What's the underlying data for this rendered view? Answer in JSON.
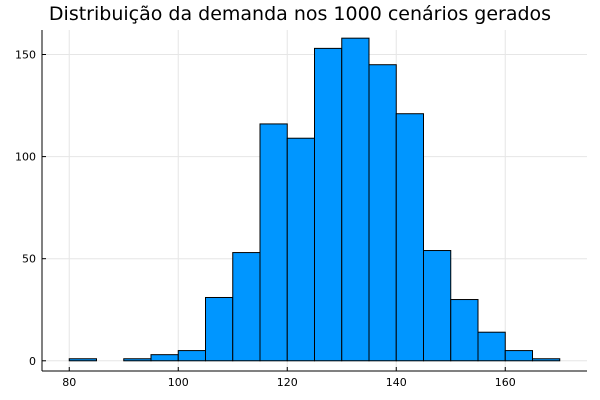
{
  "chart_data": {
    "type": "bar",
    "title": "Distribuição da demanda nos 1000 cenários gerados",
    "xlabel": "",
    "ylabel": "",
    "bar_color": "#0096FF",
    "grid": true,
    "legend": "none",
    "xlim": [
      75,
      175
    ],
    "ylim": [
      -5,
      162
    ],
    "x_ticks": [
      80,
      100,
      120,
      140,
      160
    ],
    "y_ticks": [
      0,
      50,
      100,
      150
    ],
    "bins": [
      {
        "start": 80,
        "end": 85,
        "count": 1
      },
      {
        "start": 85,
        "end": 90,
        "count": 0
      },
      {
        "start": 90,
        "end": 95,
        "count": 1
      },
      {
        "start": 95,
        "end": 100,
        "count": 3
      },
      {
        "start": 100,
        "end": 105,
        "count": 5
      },
      {
        "start": 105,
        "end": 110,
        "count": 31
      },
      {
        "start": 110,
        "end": 115,
        "count": 53
      },
      {
        "start": 115,
        "end": 120,
        "count": 116
      },
      {
        "start": 120,
        "end": 125,
        "count": 109
      },
      {
        "start": 125,
        "end": 130,
        "count": 153
      },
      {
        "start": 130,
        "end": 135,
        "count": 158
      },
      {
        "start": 135,
        "end": 140,
        "count": 145
      },
      {
        "start": 140,
        "end": 145,
        "count": 121
      },
      {
        "start": 145,
        "end": 150,
        "count": 54
      },
      {
        "start": 150,
        "end": 155,
        "count": 30
      },
      {
        "start": 155,
        "end": 160,
        "count": 14
      },
      {
        "start": 160,
        "end": 165,
        "count": 5
      },
      {
        "start": 165,
        "end": 170,
        "count": 1
      }
    ]
  }
}
